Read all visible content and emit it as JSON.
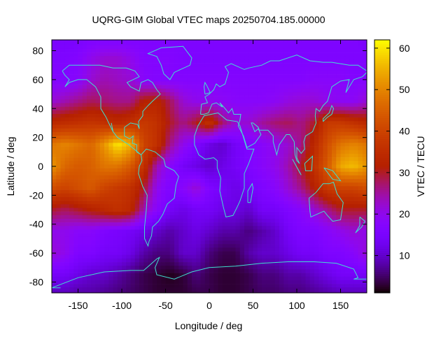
{
  "chart_data": {
    "type": "heatmap",
    "title": "UQRG-GIM Global VTEC maps 20250704.185.00000",
    "xlabel": "Longitude / deg",
    "ylabel": "Latitude / deg",
    "colorbar_label": "VTEC / TECU",
    "xlim": [
      -180,
      180
    ],
    "ylim": [
      -87.5,
      87.5
    ],
    "clim": [
      1,
      62
    ],
    "xticks": [
      -150,
      -100,
      -50,
      0,
      50,
      100,
      150
    ],
    "yticks": [
      -80,
      -60,
      -40,
      -20,
      0,
      20,
      40,
      60,
      80
    ],
    "cticks": [
      10,
      20,
      30,
      40,
      50,
      60
    ],
    "palette": "black-blue-purple-red-orange-yellow",
    "coastline_color": "#40e0d0",
    "grid": false,
    "grid_lons": [
      -180,
      -165,
      -150,
      -135,
      -120,
      -105,
      -90,
      -75,
      -60,
      -45,
      -30,
      -15,
      0,
      15,
      30,
      45,
      60,
      75,
      90,
      105,
      120,
      135,
      150,
      165,
      180
    ],
    "grid_lats": [
      87.5,
      75,
      60,
      45,
      30,
      15,
      0,
      -15,
      -30,
      -45,
      -60,
      -75,
      -87.5
    ],
    "values": [
      [
        15,
        15,
        15,
        16,
        16,
        16,
        16,
        16,
        16,
        16,
        16,
        16,
        16,
        16,
        16,
        16,
        16,
        16,
        16,
        16,
        16,
        16,
        16,
        16,
        15
      ],
      [
        16,
        16,
        17,
        20,
        22,
        22,
        20,
        17,
        17,
        17,
        16,
        16,
        16,
        16,
        16,
        16,
        16,
        16,
        16,
        16,
        16,
        16,
        16,
        16,
        16
      ],
      [
        17,
        17,
        18,
        22,
        24,
        23,
        22,
        18,
        17,
        17,
        17,
        17,
        17,
        17,
        17,
        17,
        17,
        17,
        17,
        17,
        18,
        18,
        18,
        17,
        17
      ],
      [
        22,
        24,
        26,
        28,
        27,
        26,
        26,
        32,
        33,
        28,
        22,
        20,
        20,
        19,
        18,
        18,
        18,
        19,
        21,
        22,
        22,
        20,
        19,
        19,
        22
      ],
      [
        34,
        35,
        36,
        37,
        36,
        34,
        36,
        38,
        36,
        30,
        26,
        30,
        36,
        27,
        22,
        22,
        25,
        27,
        28,
        26,
        30,
        38,
        38,
        36,
        34
      ],
      [
        48,
        50,
        48,
        46,
        52,
        60,
        55,
        40,
        36,
        26,
        20,
        16,
        12,
        10,
        14,
        16,
        18,
        20,
        22,
        26,
        34,
        42,
        48,
        50,
        48
      ],
      [
        52,
        46,
        44,
        45,
        48,
        48,
        44,
        36,
        24,
        18,
        14,
        12,
        10,
        12,
        14,
        16,
        18,
        20,
        24,
        30,
        36,
        44,
        54,
        56,
        52
      ],
      [
        42,
        40,
        42,
        44,
        40,
        38,
        36,
        30,
        20,
        16,
        18,
        22,
        16,
        14,
        12,
        14,
        16,
        18,
        22,
        26,
        32,
        38,
        40,
        40,
        42
      ],
      [
        30,
        28,
        30,
        32,
        34,
        36,
        34,
        24,
        18,
        14,
        12,
        14,
        14,
        12,
        12,
        10,
        14,
        14,
        16,
        18,
        22,
        26,
        30,
        30,
        30
      ],
      [
        20,
        20,
        18,
        18,
        16,
        15,
        14,
        12,
        10,
        8,
        10,
        12,
        10,
        8,
        8,
        6,
        8,
        10,
        14,
        16,
        16,
        18,
        20,
        22,
        20
      ],
      [
        22,
        20,
        16,
        16,
        14,
        14,
        12,
        8,
        6,
        6,
        10,
        10,
        6,
        4,
        4,
        8,
        10,
        10,
        12,
        14,
        14,
        16,
        16,
        18,
        22
      ],
      [
        14,
        14,
        12,
        10,
        10,
        8,
        6,
        4,
        3,
        2,
        3,
        6,
        4,
        3,
        3,
        4,
        6,
        6,
        8,
        8,
        10,
        12,
        14,
        14,
        14
      ],
      [
        9,
        9,
        8,
        8,
        7,
        6,
        5,
        4,
        3,
        3,
        3,
        4,
        4,
        3,
        3,
        4,
        5,
        5,
        6,
        6,
        7,
        8,
        9,
        9,
        9
      ]
    ]
  }
}
